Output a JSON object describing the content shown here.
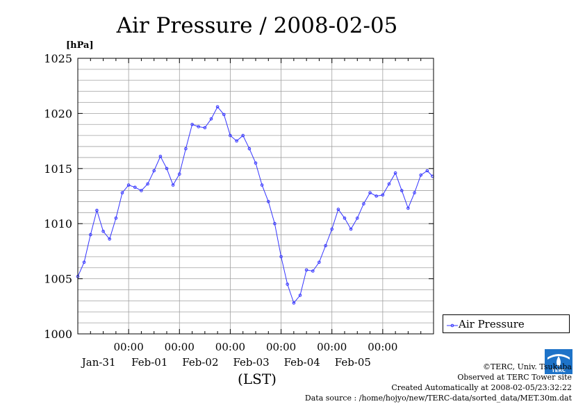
{
  "chart_data": {
    "type": "line",
    "title": "Air Pressure / 2008-02-05",
    "unit": "[hPa]",
    "xlabel": "(LST)",
    "ylim": [
      1000,
      1025
    ],
    "yticks": [
      "1000",
      "1005",
      "1010",
      "1015",
      "1020",
      "1025"
    ],
    "xlim": [
      "2008-01-30 00:00",
      "2008-02-06 00:00"
    ],
    "xticks": [
      {
        "time": "00:00",
        "date": "Jan-31"
      },
      {
        "time": "00:00",
        "date": "Feb-01"
      },
      {
        "time": "00:00",
        "date": "Feb-02"
      },
      {
        "time": "00:00",
        "date": "Feb-03"
      },
      {
        "time": "00:00",
        "date": "Feb-04"
      },
      {
        "time": "00:00",
        "date": "Feb-05"
      }
    ],
    "grid": true,
    "legend_position": "right",
    "series_color": "#3333ff",
    "series": [
      {
        "name": "Air Pressure",
        "x": [
          "2008-01-30 00:00",
          "2008-01-30 03:00",
          "2008-01-30 06:00",
          "2008-01-30 09:00",
          "2008-01-30 12:00",
          "2008-01-30 15:00",
          "2008-01-30 18:00",
          "2008-01-30 21:00",
          "2008-01-31 00:00",
          "2008-01-31 03:00",
          "2008-01-31 06:00",
          "2008-01-31 09:00",
          "2008-01-31 12:00",
          "2008-01-31 15:00",
          "2008-01-31 18:00",
          "2008-01-31 21:00",
          "2008-02-01 00:00",
          "2008-02-01 03:00",
          "2008-02-01 06:00",
          "2008-02-01 09:00",
          "2008-02-01 12:00",
          "2008-02-01 15:00",
          "2008-02-01 18:00",
          "2008-02-01 21:00",
          "2008-02-02 00:00",
          "2008-02-02 03:00",
          "2008-02-02 06:00",
          "2008-02-02 09:00",
          "2008-02-02 12:00",
          "2008-02-02 15:00",
          "2008-02-02 18:00",
          "2008-02-02 21:00",
          "2008-02-03 00:00",
          "2008-02-03 03:00",
          "2008-02-03 06:00",
          "2008-02-03 09:00",
          "2008-02-03 12:00",
          "2008-02-03 15:00",
          "2008-02-03 18:00",
          "2008-02-03 21:00",
          "2008-02-04 00:00",
          "2008-02-04 03:00",
          "2008-02-04 06:00",
          "2008-02-04 09:00",
          "2008-02-04 12:00",
          "2008-02-04 15:00",
          "2008-02-04 18:00",
          "2008-02-04 21:00",
          "2008-02-05 00:00",
          "2008-02-05 03:00",
          "2008-02-05 06:00",
          "2008-02-05 09:00",
          "2008-02-05 12:00",
          "2008-02-05 15:00",
          "2008-02-05 18:00",
          "2008-02-05 21:00",
          "2008-02-05 23:30"
        ],
        "values": [
          1005.2,
          1006.5,
          1009.0,
          1011.2,
          1009.3,
          1008.6,
          1010.5,
          1012.8,
          1013.5,
          1013.3,
          1013.0,
          1013.6,
          1014.8,
          1016.1,
          1015.0,
          1013.5,
          1014.5,
          1016.8,
          1019.0,
          1018.8,
          1018.7,
          1019.5,
          1020.6,
          1019.9,
          1018.0,
          1017.5,
          1018.0,
          1016.8,
          1015.5,
          1013.5,
          1012.0,
          1010.0,
          1007.0,
          1004.5,
          1002.8,
          1003.5,
          1005.8,
          1005.7,
          1006.5,
          1008.0,
          1009.5,
          1011.3,
          1010.5,
          1009.5,
          1010.5,
          1011.8,
          1012.8,
          1012.5,
          1012.6,
          1013.6,
          1014.6,
          1013.0,
          1011.4,
          1012.8,
          1014.4,
          1014.8,
          1014.3
        ]
      }
    ]
  },
  "credits": {
    "copyright": "©TERC, Univ. Tsukuba",
    "observed": "Observed at TERC Tower site",
    "created": "Created Automatically at 2008-02-05/23:32:22",
    "source": "Data source : /home/hojyo/new/TERC-data/sorted_data/MET.30m.dat",
    "logo_text": "TERC"
  }
}
